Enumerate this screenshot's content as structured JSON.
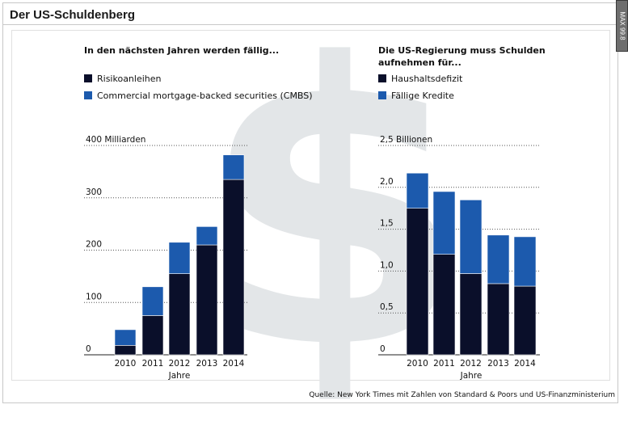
{
  "header": {
    "title": "Der US-Schuldenberg",
    "badge": "MAX 99.8"
  },
  "colors": {
    "dark": "#0a0f2a",
    "blue": "#1c5aad",
    "watermark": "#e3e6e8"
  },
  "watermark_symbol": "$",
  "left": {
    "heading": "In den nächsten Jahren werden fällig...",
    "legend": [
      "Risikoanleihen",
      "Commercial mortgage-backed securities (CMBS)"
    ]
  },
  "right": {
    "heading_line1": "Die US-Regierung muss Schulden",
    "heading_line2": "aufnehmen für...",
    "legend": [
      "Haushaltsdefizit",
      "Fällige Kredite"
    ]
  },
  "source": "Quelle: New York Times mit Zahlen von Standard & Poors und US-Finanzministerium",
  "chart_data": [
    {
      "type": "bar",
      "stacked": true,
      "categories": [
        "2010",
        "2011",
        "2012",
        "2013",
        "2014"
      ],
      "series": [
        {
          "name": "Risikoanleihen",
          "color": "#0a0f2a",
          "values": [
            18,
            75,
            155,
            210,
            335
          ]
        },
        {
          "name": "Commercial mortgage-backed securities (CMBS)",
          "color": "#1c5aad",
          "values": [
            30,
            55,
            60,
            35,
            47
          ]
        }
      ],
      "ylim": [
        0,
        400
      ],
      "yticks": [
        0,
        100,
        200,
        300,
        400
      ],
      "ytick_labels": [
        "0",
        "100",
        "200",
        "300",
        "400 Milliarden"
      ],
      "xlabel": "Jahre"
    },
    {
      "type": "bar",
      "stacked": true,
      "categories": [
        "2010",
        "2011",
        "2012",
        "2013",
        "2014"
      ],
      "series": [
        {
          "name": "Haushaltsdefizit",
          "color": "#0a0f2a",
          "values": [
            1.75,
            1.2,
            0.97,
            0.85,
            0.82
          ]
        },
        {
          "name": "Fällige Kredite",
          "color": "#1c5aad",
          "values": [
            0.42,
            0.75,
            0.88,
            0.58,
            0.59
          ]
        }
      ],
      "ylim": [
        0,
        2.5
      ],
      "yticks": [
        0,
        0.5,
        1.0,
        1.5,
        2.0,
        2.5
      ],
      "ytick_labels": [
        "0",
        "0,5",
        "1,0",
        "1,5",
        "2,0",
        "2,5  Billionen"
      ],
      "xlabel": "Jahre"
    }
  ]
}
